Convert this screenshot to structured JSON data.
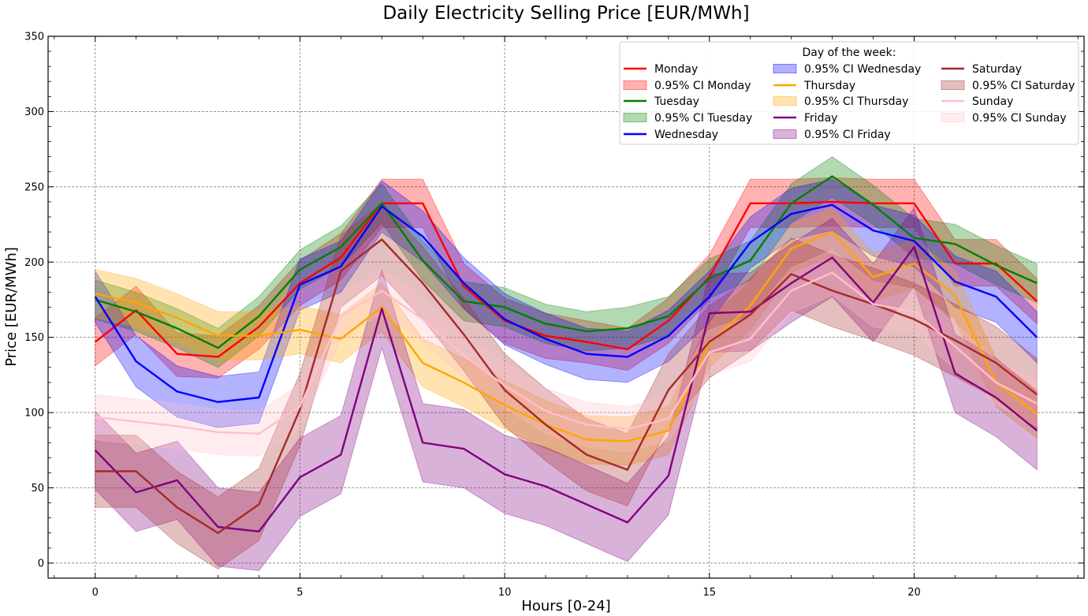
{
  "chart_data": {
    "type": "line",
    "title": "Daily Electricity Selling Price [EUR/MWh]",
    "xlabel": "Hours [0-24]",
    "ylabel": "Price [EUR/MWh]",
    "xlim": [
      -1.15,
      24.15
    ],
    "ylim": [
      -10,
      350
    ],
    "xticks": [
      0,
      5,
      10,
      15,
      20
    ],
    "yticks": [
      0,
      50,
      100,
      150,
      200,
      250,
      300,
      350
    ],
    "grid": true,
    "legend_title": "Day of the week:",
    "legend_position": "top-right",
    "x": [
      0,
      1,
      2,
      3,
      4,
      5,
      6,
      7,
      8,
      9,
      10,
      11,
      12,
      13,
      14,
      15,
      16,
      17,
      18,
      19,
      20,
      21,
      22,
      23
    ],
    "series": [
      {
        "name": "Monday",
        "ci_label": "0.95% CI Monday",
        "color": "#ff0000",
        "values": [
          147,
          168,
          139,
          137,
          157,
          186,
          203,
          239,
          239,
          184,
          161,
          151,
          147,
          142,
          161,
          190,
          239,
          239,
          240,
          239,
          239,
          199,
          199,
          174
        ],
        "ci_lower": [
          131,
          152,
          124,
          123,
          142,
          171,
          188,
          223,
          223,
          169,
          146,
          136,
          133,
          128,
          146,
          175,
          223,
          223,
          224,
          223,
          223,
          184,
          184,
          159
        ],
        "ci_upper": [
          163,
          184,
          153,
          151,
          171,
          201,
          219,
          255,
          255,
          199,
          176,
          166,
          161,
          156,
          176,
          205,
          255,
          255,
          256,
          255,
          255,
          215,
          215,
          189
        ]
      },
      {
        "name": "Tuesday",
        "ci_label": "0.95% CI Tuesday",
        "color": "#008000",
        "values": [
          175,
          167,
          156,
          143,
          164,
          195,
          210,
          239,
          201,
          174,
          170,
          159,
          154,
          156,
          164,
          189,
          201,
          239,
          257,
          238,
          216,
          212,
          198,
          186
        ],
        "ci_lower": [
          162,
          154,
          143,
          130,
          151,
          182,
          197,
          226,
          188,
          161,
          157,
          146,
          141,
          143,
          151,
          176,
          188,
          226,
          243,
          225,
          203,
          199,
          185,
          173
        ],
        "ci_upper": [
          188,
          180,
          169,
          156,
          177,
          208,
          224,
          252,
          214,
          187,
          183,
          172,
          167,
          170,
          177,
          202,
          214,
          252,
          270,
          251,
          229,
          225,
          211,
          199
        ]
      },
      {
        "name": "Wednesday",
        "ci_label": "0.95% CI Wednesday",
        "color": "#0000ff",
        "values": [
          177,
          134,
          114,
          107,
          110,
          185,
          197,
          237,
          217,
          186,
          162,
          149,
          139,
          137,
          151,
          177,
          213,
          232,
          238,
          221,
          214,
          187,
          177,
          150
        ],
        "ci_lower": [
          160,
          117,
          97,
          90,
          93,
          168,
          180,
          220,
          200,
          169,
          145,
          132,
          122,
          120,
          134,
          160,
          196,
          215,
          221,
          204,
          197,
          170,
          160,
          133
        ],
        "ci_upper": [
          194,
          151,
          131,
          124,
          127,
          202,
          214,
          254,
          234,
          203,
          179,
          166,
          156,
          154,
          168,
          194,
          230,
          249,
          255,
          238,
          231,
          204,
          194,
          167
        ]
      },
      {
        "name": "Thursday",
        "ci_label": "0.95% CI Thursday",
        "color": "#ffa500",
        "values": [
          179,
          173,
          163,
          151,
          151,
          155,
          149,
          170,
          133,
          120,
          105,
          92,
          82,
          81,
          88,
          146,
          171,
          209,
          220,
          190,
          199,
          178,
          120,
          99
        ],
        "ci_lower": [
          163,
          157,
          147,
          135,
          135,
          139,
          133,
          154,
          117,
          104,
          89,
          76,
          66,
          65,
          72,
          130,
          155,
          193,
          204,
          174,
          183,
          162,
          104,
          83
        ],
        "ci_upper": [
          195,
          189,
          179,
          167,
          167,
          171,
          165,
          186,
          149,
          136,
          121,
          108,
          98,
          97,
          104,
          162,
          187,
          225,
          236,
          206,
          215,
          194,
          136,
          115
        ]
      },
      {
        "name": "Friday",
        "ci_label": "0.95% CI Friday",
        "color": "#800080",
        "values": [
          75,
          47,
          55,
          24,
          21,
          57,
          72,
          169,
          80,
          76,
          59,
          51,
          39,
          27,
          58,
          166,
          167,
          186,
          203,
          173,
          210,
          126,
          110,
          88
        ],
        "ci_lower": [
          49,
          21,
          29,
          -2,
          -5,
          31,
          46,
          143,
          54,
          50,
          33,
          25,
          13,
          1,
          32,
          140,
          141,
          160,
          177,
          147,
          184,
          100,
          84,
          62
        ],
        "ci_upper": [
          101,
          73,
          81,
          50,
          47,
          83,
          98,
          195,
          106,
          102,
          85,
          77,
          65,
          53,
          84,
          192,
          193,
          212,
          229,
          199,
          236,
          152,
          136,
          114
        ]
      },
      {
        "name": "Saturday",
        "ci_label": "0.95% CI Saturday",
        "color": "#a52a2a",
        "values": [
          61,
          61,
          37,
          20,
          39,
          102,
          194,
          215,
          186,
          152,
          115,
          92,
          72,
          62,
          115,
          147,
          165,
          192,
          181,
          172,
          162,
          148,
          133,
          112
        ],
        "ci_lower": [
          37,
          37,
          13,
          -4,
          15,
          78,
          170,
          191,
          162,
          128,
          91,
          68,
          48,
          38,
          91,
          123,
          141,
          168,
          157,
          148,
          138,
          124,
          109,
          88
        ],
        "ci_upper": [
          85,
          85,
          61,
          44,
          63,
          126,
          218,
          239,
          210,
          176,
          139,
          116,
          96,
          86,
          139,
          171,
          189,
          216,
          205,
          196,
          186,
          172,
          157,
          136
        ]
      },
      {
        "name": "Sunday",
        "ci_label": "0.95% CI Sunday",
        "color": "#ffc0cb",
        "values": [
          97,
          94,
          91,
          87,
          86,
          104,
          164,
          181,
          162,
          138,
          118,
          101,
          92,
          89,
          96,
          140,
          149,
          181,
          193,
          172,
          167,
          144,
          120,
          106
        ],
        "ci_lower": [
          82,
          79,
          76,
          72,
          71,
          89,
          149,
          166,
          147,
          123,
          103,
          86,
          77,
          74,
          81,
          125,
          134,
          166,
          178,
          157,
          152,
          129,
          105,
          91
        ],
        "ci_upper": [
          112,
          109,
          106,
          102,
          101,
          119,
          179,
          196,
          177,
          153,
          133,
          116,
          107,
          104,
          111,
          155,
          164,
          196,
          208,
          187,
          182,
          159,
          135,
          121
        ]
      }
    ]
  }
}
